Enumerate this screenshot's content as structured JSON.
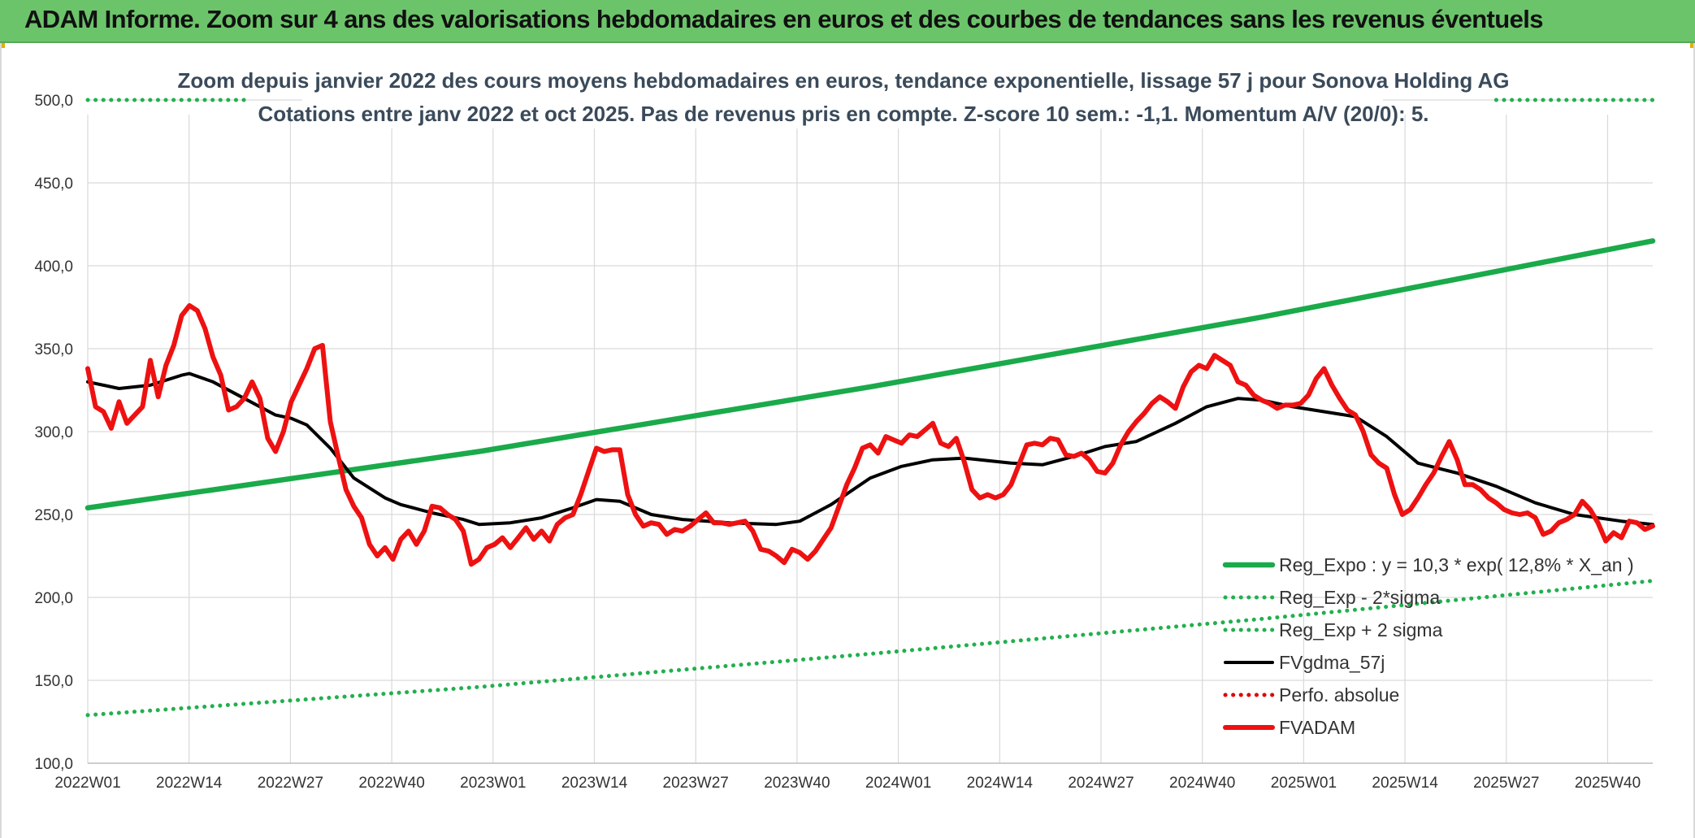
{
  "header": {
    "title": "ADAM Informe. Zoom sur 4 ans des valorisations hebdomadaires en euros et des courbes de tendances sans les revenus éventuels"
  },
  "colors": {
    "header_bg": "#6cc46a",
    "reg_expo": "#1aaa4a",
    "reg_dots": "#22b04e",
    "fvgdma": "#000000",
    "perfo": "#e00000",
    "fvadam": "#ee1111"
  },
  "chart_data": {
    "type": "line",
    "title": "Zoom depuis janvier 2022 des cours moyens hebdomadaires en euros, tendance exponentielle, lissage 57 j pour Sonova Holding AG",
    "subtitle": "Cotations entre janv 2022 et oct 2025. Pas de revenus pris en compte. Z-score 10 sem.: -1,1. Momentum A/V (20/0): 5.",
    "xlabel": "",
    "ylabel": "",
    "ylim": [
      100,
      500
    ],
    "grid": true,
    "legend_position": "bottom-right",
    "y_ticks": [
      "100,0",
      "150,0",
      "200,0",
      "250,0",
      "300,0",
      "350,0",
      "400,0",
      "450,0",
      "500,0"
    ],
    "x_ticks": [
      "2022W01",
      "2022W14",
      "2022W27",
      "2022W40",
      "2023W01",
      "2023W14",
      "2023W27",
      "2023W40",
      "2024W01",
      "2024W14",
      "2024W27",
      "2024W40",
      "2025W01",
      "2025W14",
      "2025W27",
      "2025W40"
    ],
    "x_range_weeks": [
      0,
      200
    ],
    "series": [
      {
        "name": "Reg_Expo : y = 10,3 * exp( 12,8% *  X_an )",
        "style": "solid-thick",
        "color": "#1aaa4a",
        "x": [
          0,
          50,
          100,
          150,
          200
        ],
        "values": [
          254,
          288,
          327,
          369,
          415
        ]
      },
      {
        "name": "Reg_Exp - 2*sigma",
        "style": "dotted",
        "color": "#22b04e",
        "x": [
          0,
          50,
          100,
          150,
          200
        ],
        "values": [
          129,
          146,
          166,
          187,
          210
        ]
      },
      {
        "name": "Reg_Exp + 2 sigma",
        "style": "dotted",
        "color": "#22b04e",
        "x": [
          0,
          20,
          180,
          200
        ],
        "values": [
          500,
          500,
          500,
          500
        ]
      },
      {
        "name": "FVgdma_57j",
        "style": "solid",
        "color": "#000000",
        "x": [
          0,
          4,
          8,
          12,
          13,
          16,
          20,
          24,
          26,
          28,
          31,
          34,
          38,
          40,
          44,
          48,
          50,
          54,
          58,
          62,
          65,
          68,
          72,
          76,
          82,
          88,
          91,
          95,
          100,
          104,
          108,
          112,
          118,
          122,
          126,
          130,
          134,
          139,
          143,
          147,
          150,
          154,
          158,
          162,
          166,
          170,
          175,
          180,
          185,
          190,
          196,
          200
        ],
        "values": [
          330,
          326,
          328,
          334,
          335,
          330,
          320,
          310,
          308,
          304,
          290,
          272,
          260,
          256,
          251,
          247,
          244,
          245,
          248,
          254,
          259,
          258,
          250,
          247,
          245,
          244,
          246,
          256,
          272,
          279,
          283,
          284,
          281,
          280,
          285,
          291,
          294,
          305,
          315,
          320,
          319,
          315,
          312,
          309,
          297,
          281,
          275,
          267,
          257,
          250,
          246,
          244
        ]
      },
      {
        "name": "Perfo. absolue",
        "style": "dotted",
        "color": "#e00000",
        "x": [],
        "values": []
      },
      {
        "name": "FVADAM",
        "style": "solid-thick",
        "color": "#ee1111",
        "x": [
          0,
          1,
          2,
          3,
          4,
          5,
          6,
          7,
          8,
          9,
          10,
          11,
          12,
          13,
          14,
          15,
          16,
          17,
          18,
          19,
          20,
          21,
          22,
          23,
          24,
          25,
          26,
          27,
          28,
          29,
          30,
          31,
          32,
          33,
          34,
          35,
          36,
          37,
          38,
          39,
          40,
          41,
          42,
          43,
          44,
          45,
          46,
          47,
          48,
          49,
          50,
          51,
          52,
          53,
          54,
          55,
          56,
          57,
          58,
          59,
          60,
          61,
          62,
          63,
          64,
          65,
          66,
          67,
          68,
          69,
          70,
          71,
          72,
          73,
          74,
          75,
          76,
          77,
          78,
          79,
          80,
          81,
          82,
          83,
          84,
          85,
          86,
          87,
          88,
          89,
          90,
          91,
          92,
          93,
          94,
          95,
          96,
          97,
          98,
          99,
          100,
          101,
          102,
          103,
          104,
          105,
          106,
          107,
          108,
          109,
          110,
          111,
          112,
          113,
          114,
          115,
          116,
          117,
          118,
          119,
          120,
          121,
          122,
          123,
          124,
          125,
          126,
          127,
          128,
          129,
          130,
          131,
          132,
          133,
          134,
          135,
          136,
          137,
          138,
          139,
          140,
          141,
          142,
          143,
          144,
          145,
          146,
          147,
          148,
          149,
          150,
          151,
          152,
          153,
          154,
          155,
          156,
          157,
          158,
          159,
          160,
          161,
          162,
          163,
          164,
          165,
          166,
          167,
          168,
          169,
          170,
          171,
          172,
          173,
          174,
          175,
          176,
          177,
          178,
          179,
          180,
          181,
          182,
          183,
          184,
          185,
          186,
          187,
          188,
          189,
          190,
          191,
          192,
          193,
          194,
          195,
          196,
          197,
          198,
          199,
          200
        ],
        "values": [
          338,
          315,
          312,
          302,
          318,
          305,
          310,
          315,
          343,
          321,
          340,
          352,
          370,
          376,
          373,
          362,
          345,
          334,
          313,
          315,
          320,
          330,
          320,
          296,
          288,
          300,
          318,
          328,
          338,
          350,
          352,
          306,
          285,
          265,
          255,
          248,
          232,
          225,
          230,
          223,
          235,
          240,
          232,
          240,
          255,
          254,
          250,
          247,
          240,
          220,
          223,
          230,
          232,
          236,
          230,
          236,
          242,
          235,
          240,
          234,
          244,
          248,
          250,
          262,
          276,
          290,
          288,
          289,
          289,
          262,
          250,
          243,
          245,
          244,
          238,
          241,
          240,
          243,
          247,
          251,
          245,
          245,
          244,
          245,
          246,
          240,
          229,
          228,
          225,
          221,
          229,
          227,
          223,
          228,
          235,
          242,
          255,
          268,
          278,
          290,
          292,
          287,
          297,
          295,
          293,
          298,
          297,
          301,
          305,
          293,
          291,
          296,
          282,
          265,
          260,
          262,
          260,
          262,
          268,
          280,
          292,
          293,
          292,
          296,
          295,
          286,
          285,
          287,
          283,
          276,
          275,
          281,
          292,
          300,
          306,
          311,
          317,
          321,
          318,
          314,
          327,
          336,
          340,
          338,
          346,
          343,
          340,
          330,
          328,
          322,
          319,
          317,
          314,
          316,
          316,
          317,
          322,
          332,
          338,
          328,
          320,
          313,
          310,
          300,
          286,
          281,
          278,
          262,
          250,
          253,
          260,
          268,
          275,
          285,
          294,
          283,
          268,
          268,
          265,
          260,
          257,
          253,
          251,
          250,
          251,
          248,
          238,
          240,
          245,
          247,
          250,
          258,
          253,
          245,
          234,
          239,
          236,
          246,
          245,
          241,
          243
        ]
      }
    ]
  }
}
